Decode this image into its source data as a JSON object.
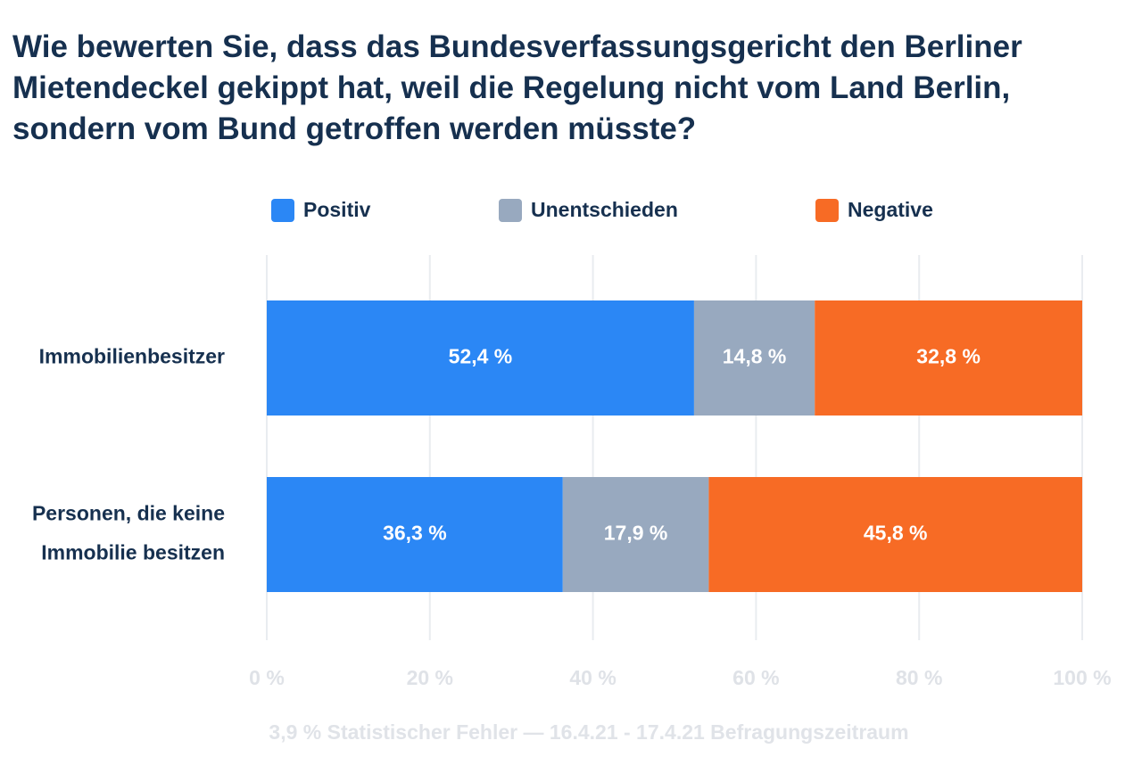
{
  "chart_data": {
    "type": "bar",
    "orientation": "horizontal",
    "stacked": true,
    "title": "Wie bewerten Sie, dass das Bundesverfassungsgericht den Berliner Mietendeckel gekippt hat, weil die Regelung nicht vom Land Berlin, sondern vom Bund getroffen werden müsste?",
    "categories": [
      [
        "Immobilienbesitzer"
      ],
      [
        "Personen, die keine",
        "Immobilie besitzen"
      ]
    ],
    "series": [
      {
        "name": "Positiv",
        "color": "#2b87f5",
        "values": [
          52.4,
          36.3
        ],
        "labels": [
          "52,4 %",
          "36,3 %"
        ]
      },
      {
        "name": "Unentschieden",
        "color": "#98a9bf",
        "values": [
          14.8,
          17.9
        ],
        "labels": [
          "14,8 %",
          "17,9 %"
        ]
      },
      {
        "name": "Negative",
        "color": "#f76b25",
        "values": [
          32.8,
          45.8
        ],
        "labels": [
          "32,8 %",
          "45,8 %"
        ]
      }
    ],
    "xlim": [
      0,
      100
    ],
    "xticks": [
      0,
      20,
      40,
      60,
      80,
      100
    ],
    "xtick_labels": [
      "0 %",
      "20 %",
      "40 %",
      "60 %",
      "80 %",
      "100 %"
    ],
    "grid": true,
    "legend_position": "top",
    "footnote": "3,9 % Statistischer Fehler — 16.4.21 - 17.4.21 Befragungszeitraum"
  }
}
